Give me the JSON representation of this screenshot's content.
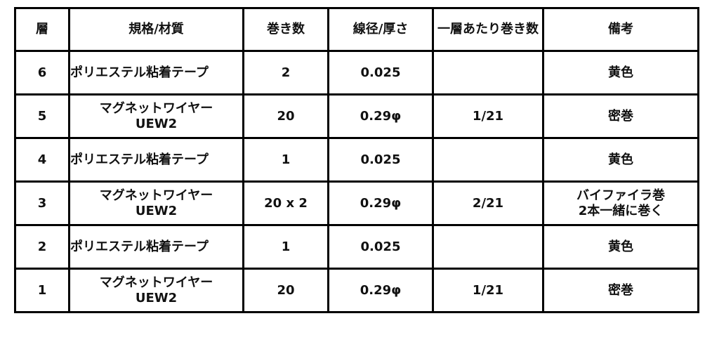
{
  "headers": [
    "層",
    "規格/材質",
    "巻き数",
    "線径/厚さ",
    "一層あたり巻き数",
    "備考"
  ],
  "rows": [
    {
      "layer": "6",
      "material": "ポリエステル粘着テープ",
      "turns": "2",
      "diameter": "0.025",
      "per_layer": "",
      "note": "黄色"
    },
    {
      "layer": "5",
      "material": "マグネットワイヤー UEW2",
      "turns": "20",
      "diameter": "0.29φ",
      "per_layer": "1/21",
      "note": "密巻"
    },
    {
      "layer": "4",
      "material": "ポリエステル粘着テープ",
      "turns": "1",
      "diameter": "0.025",
      "per_layer": "",
      "note": "黄色"
    },
    {
      "layer": "3",
      "material": "マグネットワイヤー UEW2",
      "turns": "20 x 2",
      "diameter": "0.29φ",
      "per_layer": "2/21",
      "note": "バイファイラ巻 2本一緒に巻く"
    },
    {
      "layer": "2",
      "material": "ポリエステル粘着テープ",
      "turns": "1",
      "diameter": "0.025",
      "per_layer": "",
      "note": "黄色"
    },
    {
      "layer": "1",
      "material": "マグネットワイヤー UEW2",
      "turns": "20",
      "diameter": "0.29φ",
      "per_layer": "1/21",
      "note": "密巻"
    }
  ]
}
